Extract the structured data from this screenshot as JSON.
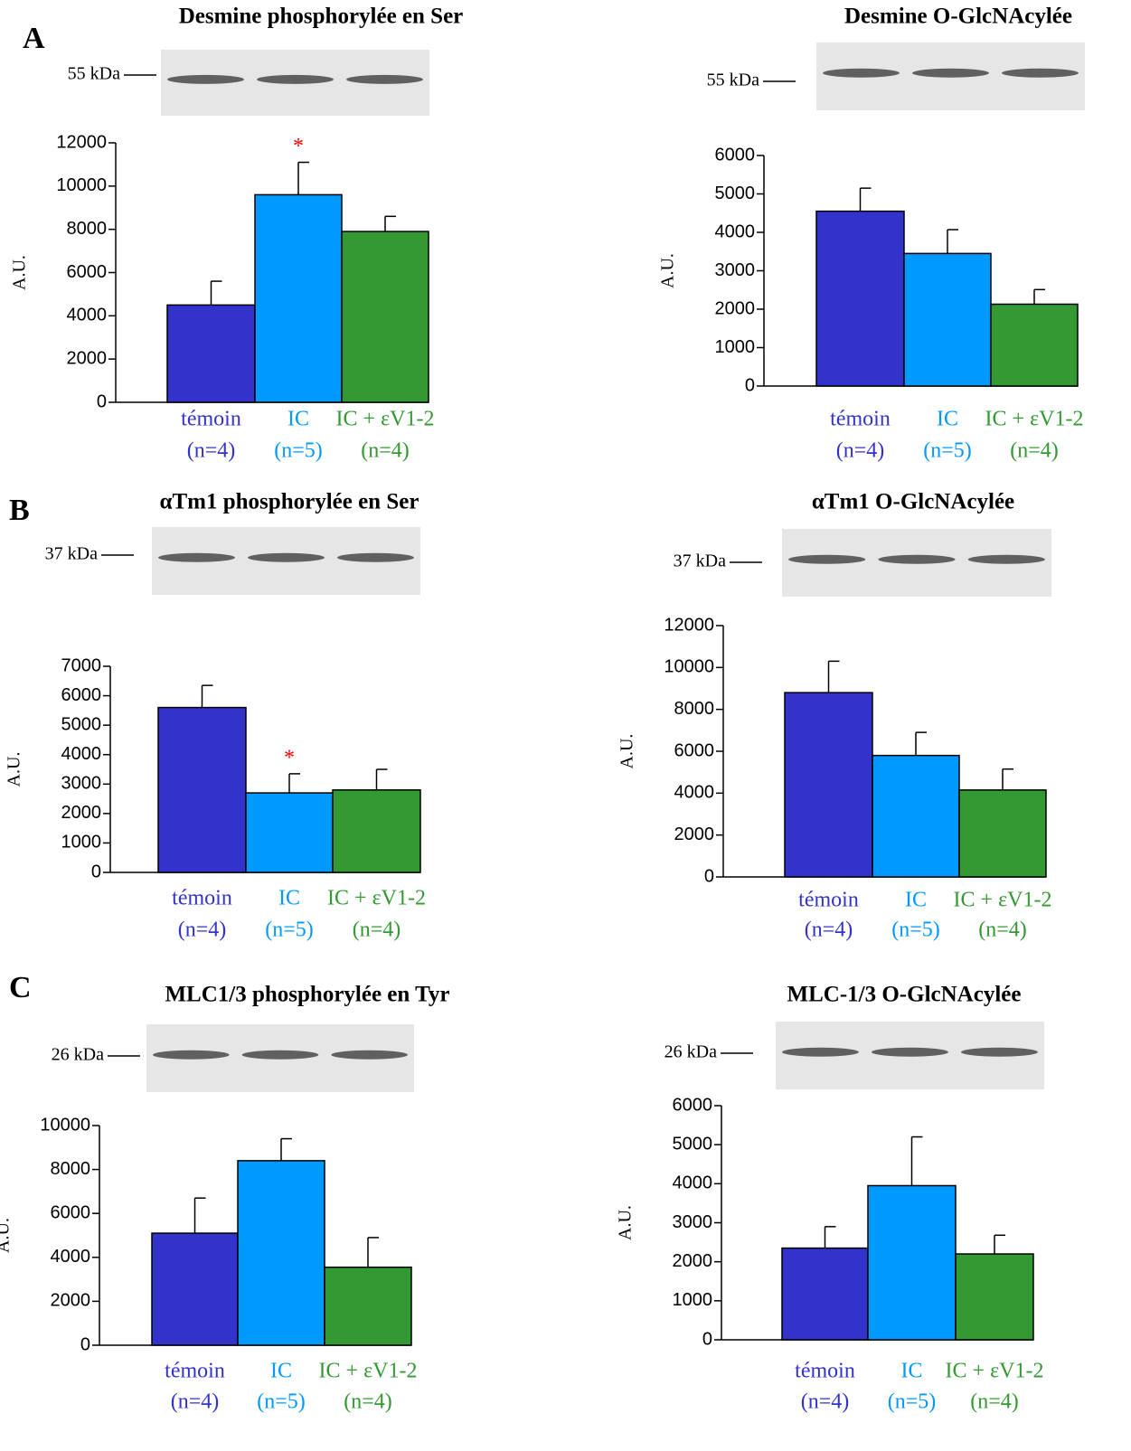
{
  "chart_data": [
    {
      "type": "bar",
      "panel_label": "A",
      "title": "Desmine phosphorylée en Ser",
      "blot_marker": "55 kDa",
      "ylabel": "A.U.",
      "categories": [
        "témoin",
        "IC",
        "IC + εV1-2"
      ],
      "category_notes": [
        "(n=4)",
        "(n=5)",
        "(n=4)"
      ],
      "colors": [
        "#3333cc",
        "#0099ff",
        "#339933"
      ],
      "values": [
        4500,
        9600,
        7900
      ],
      "errors": [
        1100,
        1500,
        700
      ],
      "ylim": [
        0,
        12000
      ],
      "yticks": [
        0,
        2000,
        4000,
        6000,
        8000,
        10000,
        12000
      ],
      "annotation": {
        "text": "*",
        "category": 1,
        "color": "#ff0000"
      }
    },
    {
      "type": "bar",
      "title": "Desmine O-GlcNAcylée",
      "blot_marker": "55 kDa",
      "ylabel": "A.U.",
      "categories": [
        "témoin",
        "IC",
        "IC + εV1-2"
      ],
      "category_notes": [
        "(n=4)",
        "(n=5)",
        "(n=4)"
      ],
      "colors": [
        "#3333cc",
        "#0099ff",
        "#339933"
      ],
      "values": [
        4550,
        3450,
        2130
      ],
      "errors": [
        600,
        620,
        380
      ],
      "ylim": [
        0,
        6000
      ],
      "yticks": [
        0,
        1000,
        2000,
        3000,
        4000,
        5000,
        6000
      ]
    },
    {
      "type": "bar",
      "panel_label": "B",
      "title": "αTm1 phosphorylée en Ser",
      "blot_marker": "37 kDa",
      "ylabel": "A.U.",
      "categories": [
        "témoin",
        "IC",
        "IC + εV1-2"
      ],
      "category_notes": [
        "(n=4)",
        "(n=5)",
        "(n=4)"
      ],
      "colors": [
        "#3333cc",
        "#0099ff",
        "#339933"
      ],
      "values": [
        5600,
        2700,
        2800
      ],
      "errors": [
        750,
        650,
        700
      ],
      "ylim": [
        0,
        7000
      ],
      "yticks": [
        0,
        1000,
        2000,
        3000,
        4000,
        5000,
        6000,
        7000
      ],
      "annotation": {
        "text": "*",
        "category": 1,
        "color": "#ff0000"
      }
    },
    {
      "type": "bar",
      "title": "αTm1 O-GlcNAcylée",
      "blot_marker": "37 kDa",
      "ylabel": "A.U.",
      "categories": [
        "témoin",
        "IC",
        "IC + εV1-2"
      ],
      "category_notes": [
        "(n=4)",
        "(n=5)",
        "(n=4)"
      ],
      "colors": [
        "#3333cc",
        "#0099ff",
        "#339933"
      ],
      "values": [
        8800,
        5800,
        4150
      ],
      "errors": [
        1500,
        1100,
        1000
      ],
      "ylim": [
        0,
        12000
      ],
      "yticks": [
        0,
        2000,
        4000,
        6000,
        8000,
        10000,
        12000
      ]
    },
    {
      "type": "bar",
      "panel_label": "C",
      "title": "MLC1/3 phosphorylée en Tyr",
      "blot_marker": "26 kDa",
      "ylabel": "A.U.",
      "categories": [
        "témoin",
        "IC",
        "IC + εV1-2"
      ],
      "category_notes": [
        "(n=4)",
        "(n=5)",
        "(n=4)"
      ],
      "colors": [
        "#3333cc",
        "#0099ff",
        "#339933"
      ],
      "values": [
        5100,
        8400,
        3550
      ],
      "errors": [
        1600,
        1000,
        1350
      ],
      "ylim": [
        0,
        10000
      ],
      "yticks": [
        0,
        2000,
        4000,
        6000,
        8000,
        10000
      ]
    },
    {
      "type": "bar",
      "title": "MLC-1/3 O-GlcNAcylée",
      "blot_marker": "26 kDa",
      "ylabel": "A.U.",
      "categories": [
        "témoin",
        "IC",
        "IC + εV1-2"
      ],
      "category_notes": [
        "(n=4)",
        "(n=5)",
        "(n=4)"
      ],
      "colors": [
        "#3333cc",
        "#0099ff",
        "#339933"
      ],
      "values": [
        2350,
        3950,
        2200
      ],
      "errors": [
        550,
        1250,
        480
      ],
      "ylim": [
        0,
        6000
      ],
      "yticks": [
        0,
        1000,
        2000,
        3000,
        4000,
        5000,
        6000
      ]
    }
  ]
}
